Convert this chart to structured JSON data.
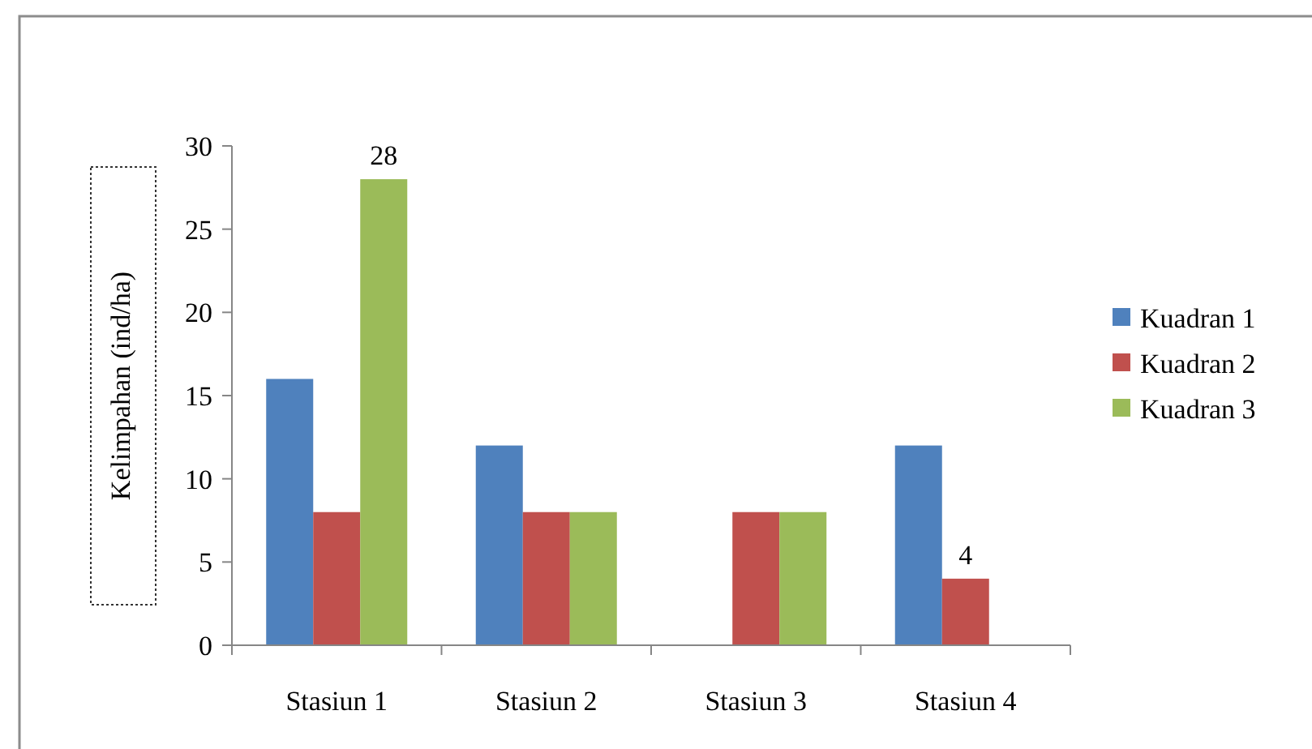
{
  "chart_data": {
    "type": "bar",
    "ylabel": "Kelimpahan (ind/ha)",
    "categories": [
      "Stasiun 1",
      "Stasiun 2",
      "Stasiun 3",
      "Stasiun 4"
    ],
    "series": [
      {
        "name": "Kuadran 1",
        "color": "#4f81bd",
        "values": [
          16,
          12,
          null,
          12
        ]
      },
      {
        "name": "Kuadran 2",
        "color": "#c0504d",
        "values": [
          8,
          8,
          8,
          4
        ],
        "value_labels": [
          null,
          null,
          null,
          "4"
        ]
      },
      {
        "name": "Kuadran 3",
        "color": "#9bbb59",
        "values": [
          28,
          8,
          8,
          null
        ],
        "value_labels": [
          "28",
          null,
          null,
          null
        ]
      }
    ],
    "ylim": [
      0,
      30
    ],
    "yticks": [
      0,
      5,
      10,
      15,
      20,
      25,
      30
    ],
    "grid": false,
    "legend": "right"
  }
}
